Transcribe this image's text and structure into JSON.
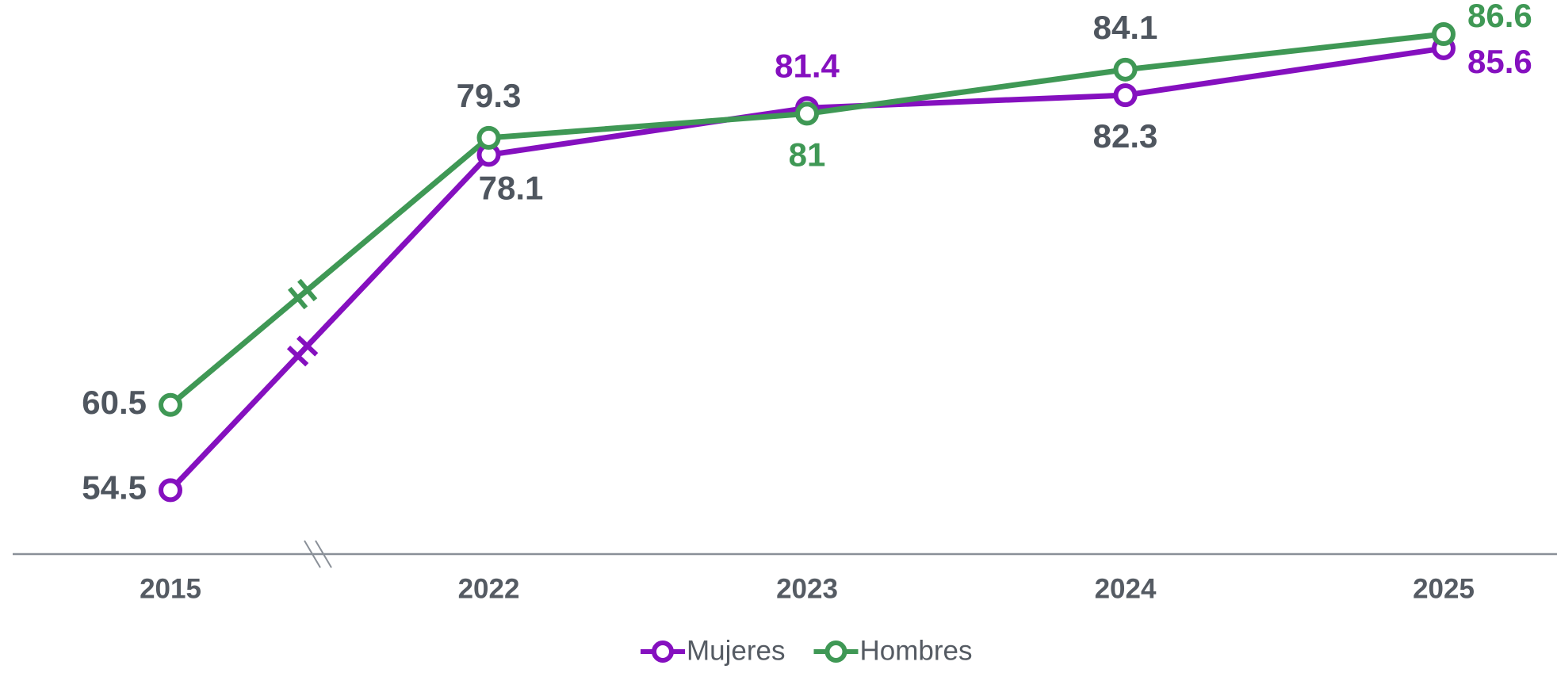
{
  "chart_data": {
    "type": "line",
    "categories": [
      "2015",
      "2022",
      "2023",
      "2024",
      "2025"
    ],
    "series": [
      {
        "name": "Mujeres",
        "color": "#8510bf",
        "values": [
          54.5,
          78.1,
          81.4,
          82.3,
          85.6
        ]
      },
      {
        "name": "Hombres",
        "color": "#3f9855",
        "values": [
          60.5,
          79.3,
          81.0,
          84.1,
          86.6
        ]
      }
    ],
    "ylim": [
      50,
      89
    ]
  }
}
